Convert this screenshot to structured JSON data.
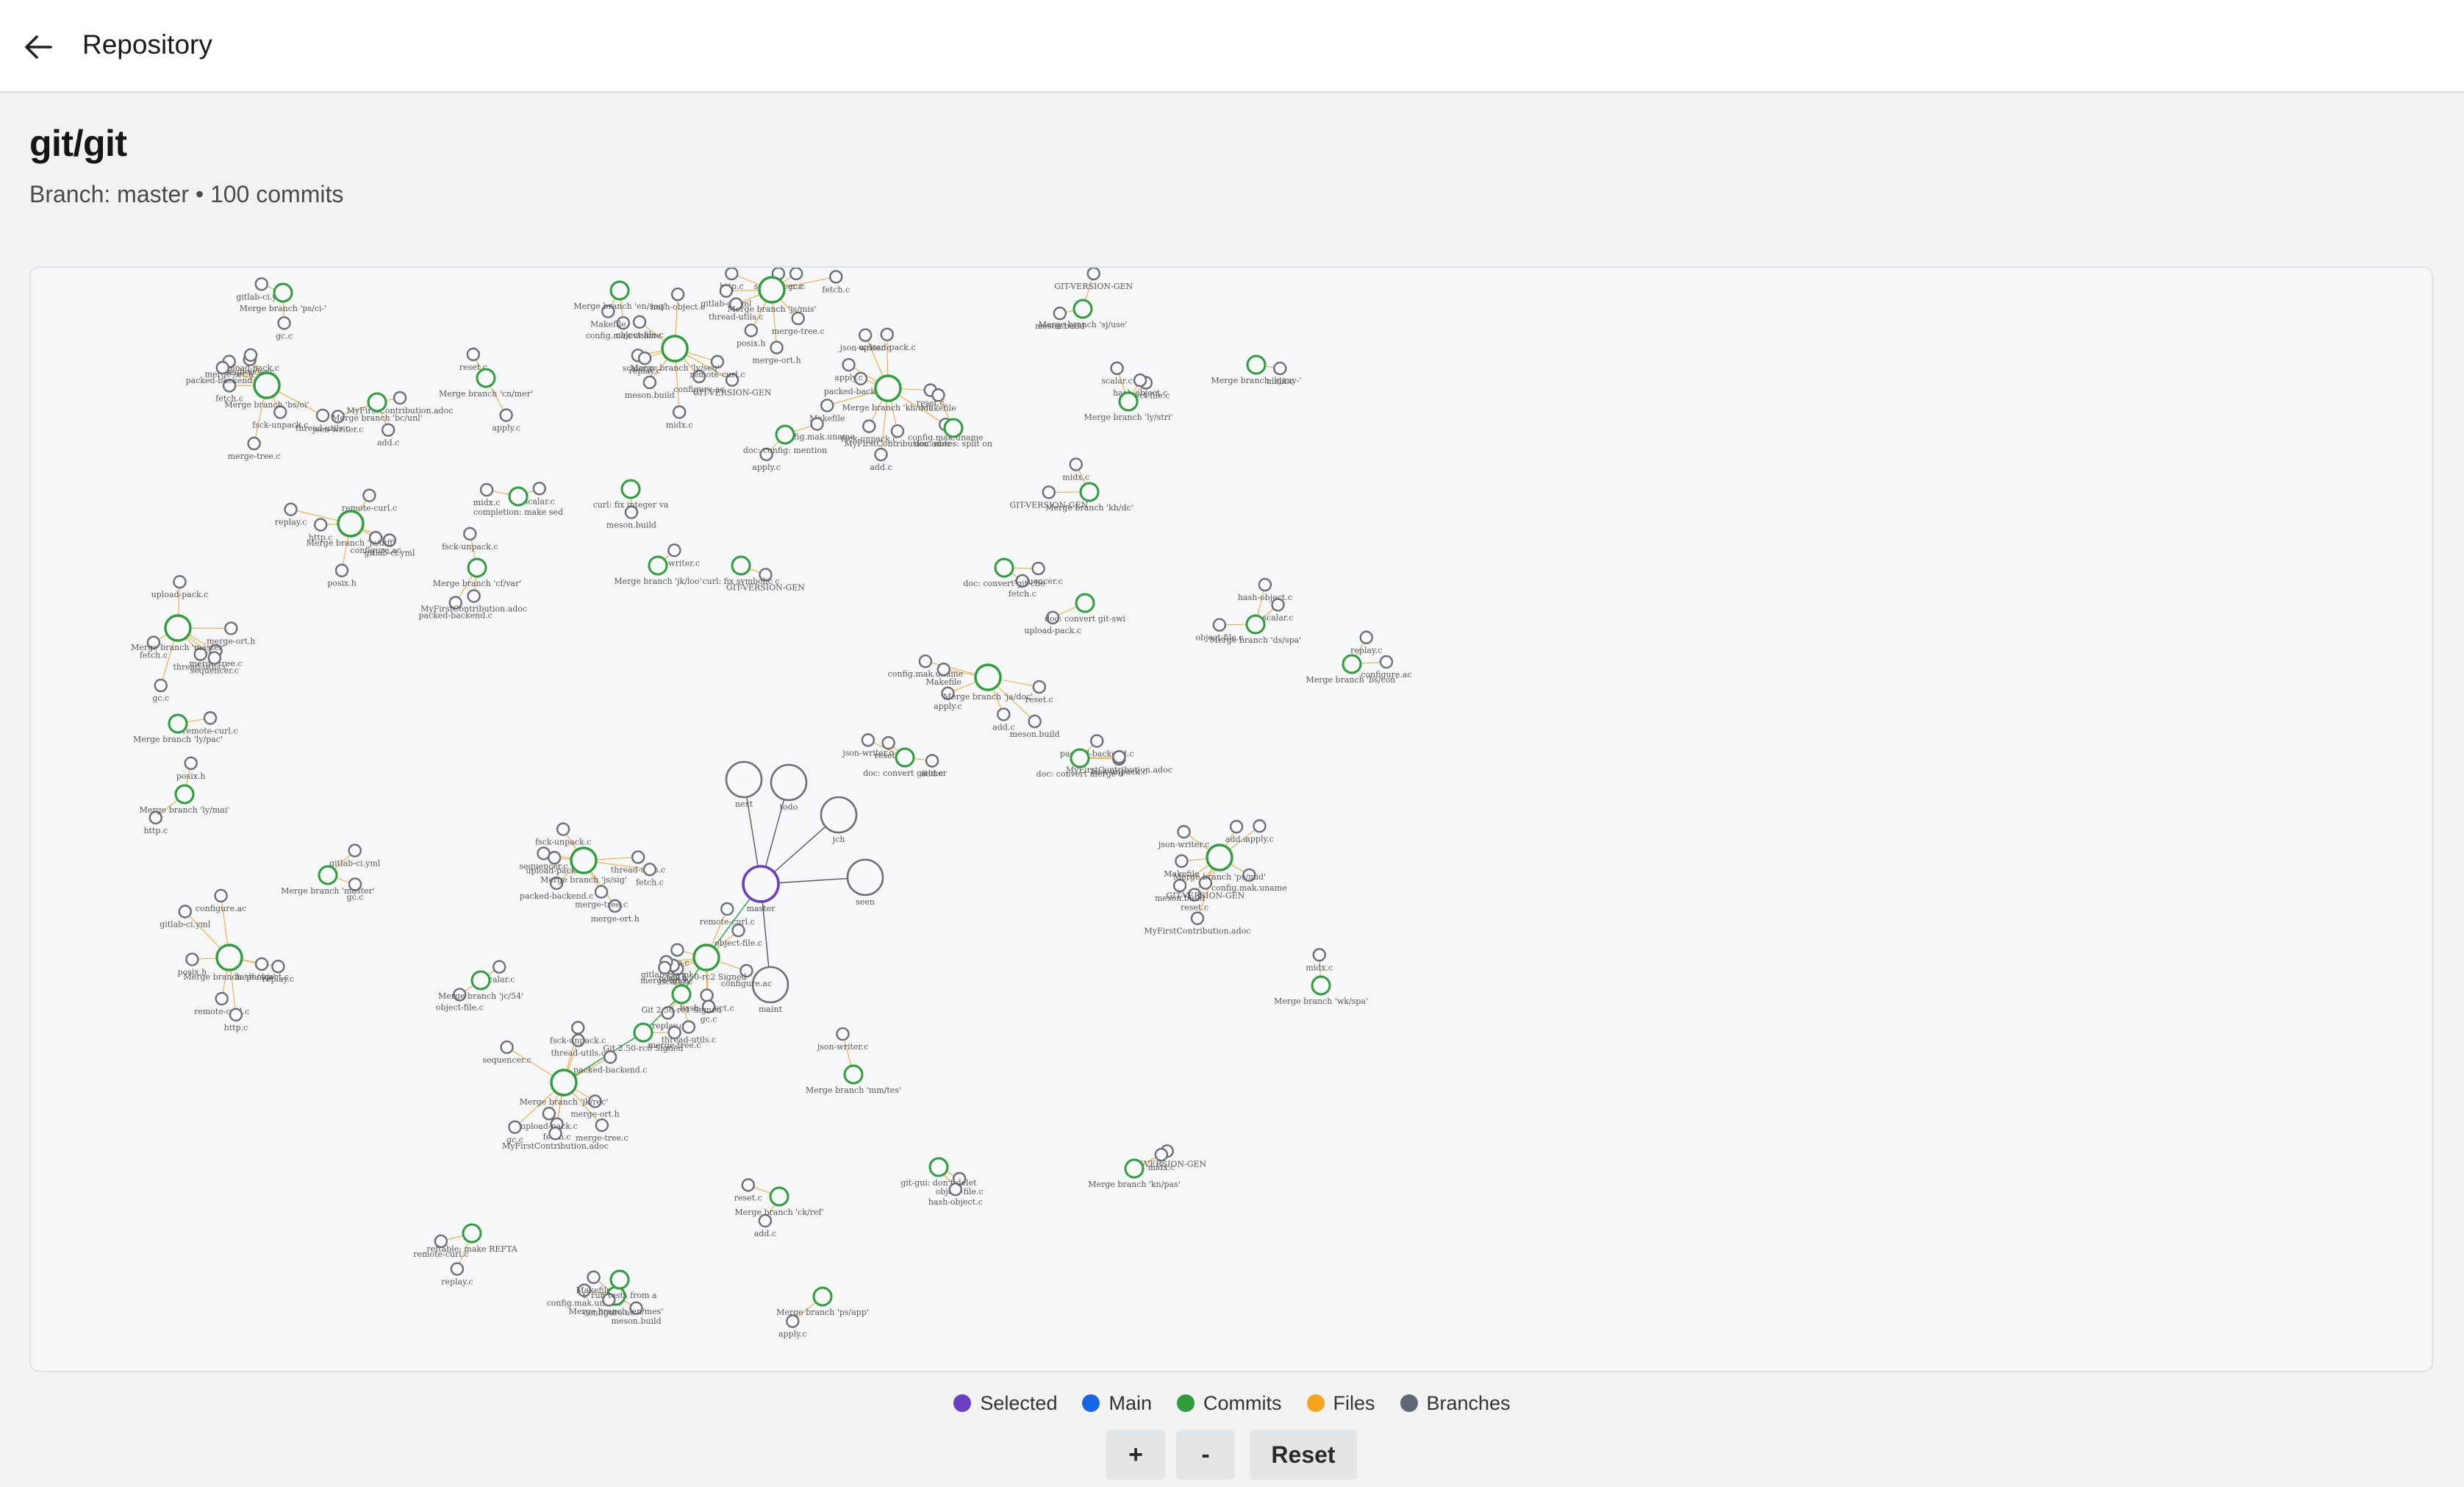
{
  "header": {
    "title": "Repository",
    "back_icon": "arrow-left-icon"
  },
  "repo": {
    "name": "git/git",
    "subtitle": "Branch: master • 100 commits"
  },
  "graph": {
    "center": {
      "name": "master",
      "color": "#6a3fc0"
    },
    "branches": [
      "next",
      "todo",
      "jch",
      "seen",
      "maint"
    ],
    "commits": [
      "Merge branch 'ps/ci-'",
      "Merge branch 'bs/oi'",
      "Merge branch 'bc/unl'",
      "Merge branch 'cn/mer'",
      "Merge branch 'en/seq'",
      "Merge branch 'ly/seq'",
      "Merge branch 'js/mis'",
      "Merge branch 'kh/not'",
      "Merge branch 'sj/use'",
      "Merge branch 'kj/my-'",
      "Merge branch 'ly/stri'",
      "Merge branch 'jc/diff'",
      "Merge branch 'master'",
      "Merge branch 'cf/var'",
      "Merge branch 'jk/loo'",
      "Merge branch 'ja/doc'",
      "Merge branch 'kh/dc'",
      "Merge branch 'ds/spa'",
      "Merge branch 'bs/con'",
      "Merge branch 'ly/pac'",
      "Merge branch 'ly/mai'",
      "Merge branch 'master'",
      "Merge branch 'js/sig'",
      "Merge branch 'ps/mid'",
      "Merge branch 'wk/spa'",
      "Merge branch 'jc/54'",
      "Merge branch 'ph/sca'",
      "Merge branch 'jk/rec'",
      "Merge branch 'mm/tes'",
      "Merge branch 'ck/ref'",
      "Merge branch 'ps/app'",
      "Merge branch 'en/mes'",
      "Merge branch 'kn/pas'",
      "Git 2.50-rc2 Signed",
      "Git 2.50-rc1 Signed",
      "Git 2.50-rc0 Signed",
      "doc: convert git-cho",
      "doc: convert git-swi",
      "doc: convert merge o",
      "doc: convert git-mer",
      "doc: config: mention",
      "doc: notes: split on",
      "curl: fix integer va",
      "curl: fix symbolic c",
      "completion: make sed",
      "git-gui: don't delet",
      "t: run tests from a",
      "reftable: make REFTA"
    ],
    "files": [
      "gitlab-ci.yml",
      "gc.c",
      "thread-utils.c",
      "merge-ort.h",
      "merge-tree.c",
      "sequencer.c",
      "fetch.c",
      "upload-pack.c",
      "packed-backend.c",
      "fsck-unpack.c",
      "MyFirstContribution.adoc",
      "json-writer.c",
      "add.c",
      "reset.c",
      "apply.c",
      "config.mak.uname",
      "Makefile",
      "meson.build",
      "GIT-VERSION-GEN",
      "midx.c",
      "scalar.c",
      "object-file.c",
      "hash-object.c",
      "configure.ac",
      "replay.c",
      "remote-curl.c",
      "http.c",
      "posix.h"
    ]
  },
  "legend": [
    {
      "label": "Selected",
      "color": "#6a3fc0"
    },
    {
      "label": "Main",
      "color": "#1565e6"
    },
    {
      "label": "Commits",
      "color": "#2e9e3d"
    },
    {
      "label": "Files",
      "color": "#f4a41e"
    },
    {
      "label": "Branches",
      "color": "#606a77"
    }
  ],
  "controls": {
    "zoom_in": "+",
    "zoom_out": "-",
    "reset": "Reset"
  }
}
